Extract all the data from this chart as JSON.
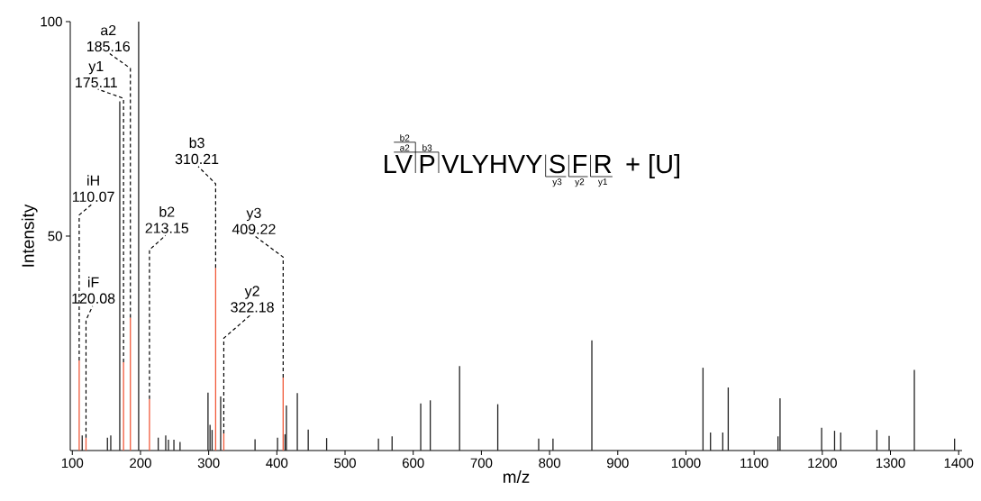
{
  "chart_data": {
    "type": "bar",
    "xlabel": "m/z",
    "ylabel": "Intensity",
    "xlim": [
      97,
      1405
    ],
    "ylim": [
      0,
      100
    ],
    "xticks": [
      100,
      200,
      300,
      400,
      500,
      600,
      700,
      800,
      900,
      1000,
      1100,
      1200,
      1300,
      1400
    ],
    "yticks": [
      50,
      100
    ],
    "series": [
      {
        "color": "#222222",
        "x": [
          114.5,
          151.5,
          156.4,
          169.6,
          197.3,
          226,
          237,
          241,
          249,
          258,
          299,
          302,
          305,
          317.6,
          368,
          401,
          412,
          414,
          430,
          446,
          473,
          549,
          569,
          611,
          625,
          668,
          724,
          784,
          805,
          862,
          1025,
          1036,
          1054,
          1062,
          1135,
          1138,
          1199,
          1218,
          1227,
          1280,
          1298,
          1335,
          1394
        ],
        "values": [
          3.5,
          3,
          3.5,
          81.4,
          100,
          3,
          3.5,
          2.5,
          2.5,
          2,
          13.5,
          6,
          4.8,
          12.6,
          2.6,
          3,
          3.8,
          10.5,
          13.4,
          4.9,
          2.9,
          2.8,
          3.3,
          11,
          11.7,
          19.7,
          10.8,
          2.8,
          2.8,
          25.7,
          19.3,
          4.2,
          4.2,
          14.7,
          3.3,
          12.2,
          5.3,
          4.6,
          4.2,
          4.8,
          3.4,
          18.8,
          2.8
        ]
      },
      {
        "color": "#f15a3a",
        "x": [
          110.07,
          120.08,
          175.11,
          185.16,
          213.15,
          310.21,
          322.18,
          409.22
        ],
        "values": [
          21,
          3,
          20.6,
          31,
          12,
          42.6,
          4,
          17
        ]
      }
    ],
    "annotations": [
      {
        "text": "iH 110.07",
        "x": 110.07,
        "y": 21
      },
      {
        "text": "iF 120.08",
        "x": 120.08,
        "y": 3
      },
      {
        "text": "y1 175.11",
        "x": 175.11,
        "y": 20.6
      },
      {
        "text": "a2 185.16",
        "x": 185.16,
        "y": 31
      },
      {
        "text": "b2 213.15",
        "x": 213.15,
        "y": 12
      },
      {
        "text": "b3 310.21",
        "x": 310.21,
        "y": 42.6
      },
      {
        "text": "y2 322.18",
        "x": 322.18,
        "y": 4
      },
      {
        "text": "y3 409.22",
        "x": 409.22,
        "y": 17
      },
      "LV",
      "P",
      "VLYHVY",
      "S",
      "F",
      "R",
      "+ [U]",
      "b2",
      "a2",
      "b3",
      "y3",
      "y2",
      "y1"
    ]
  }
}
